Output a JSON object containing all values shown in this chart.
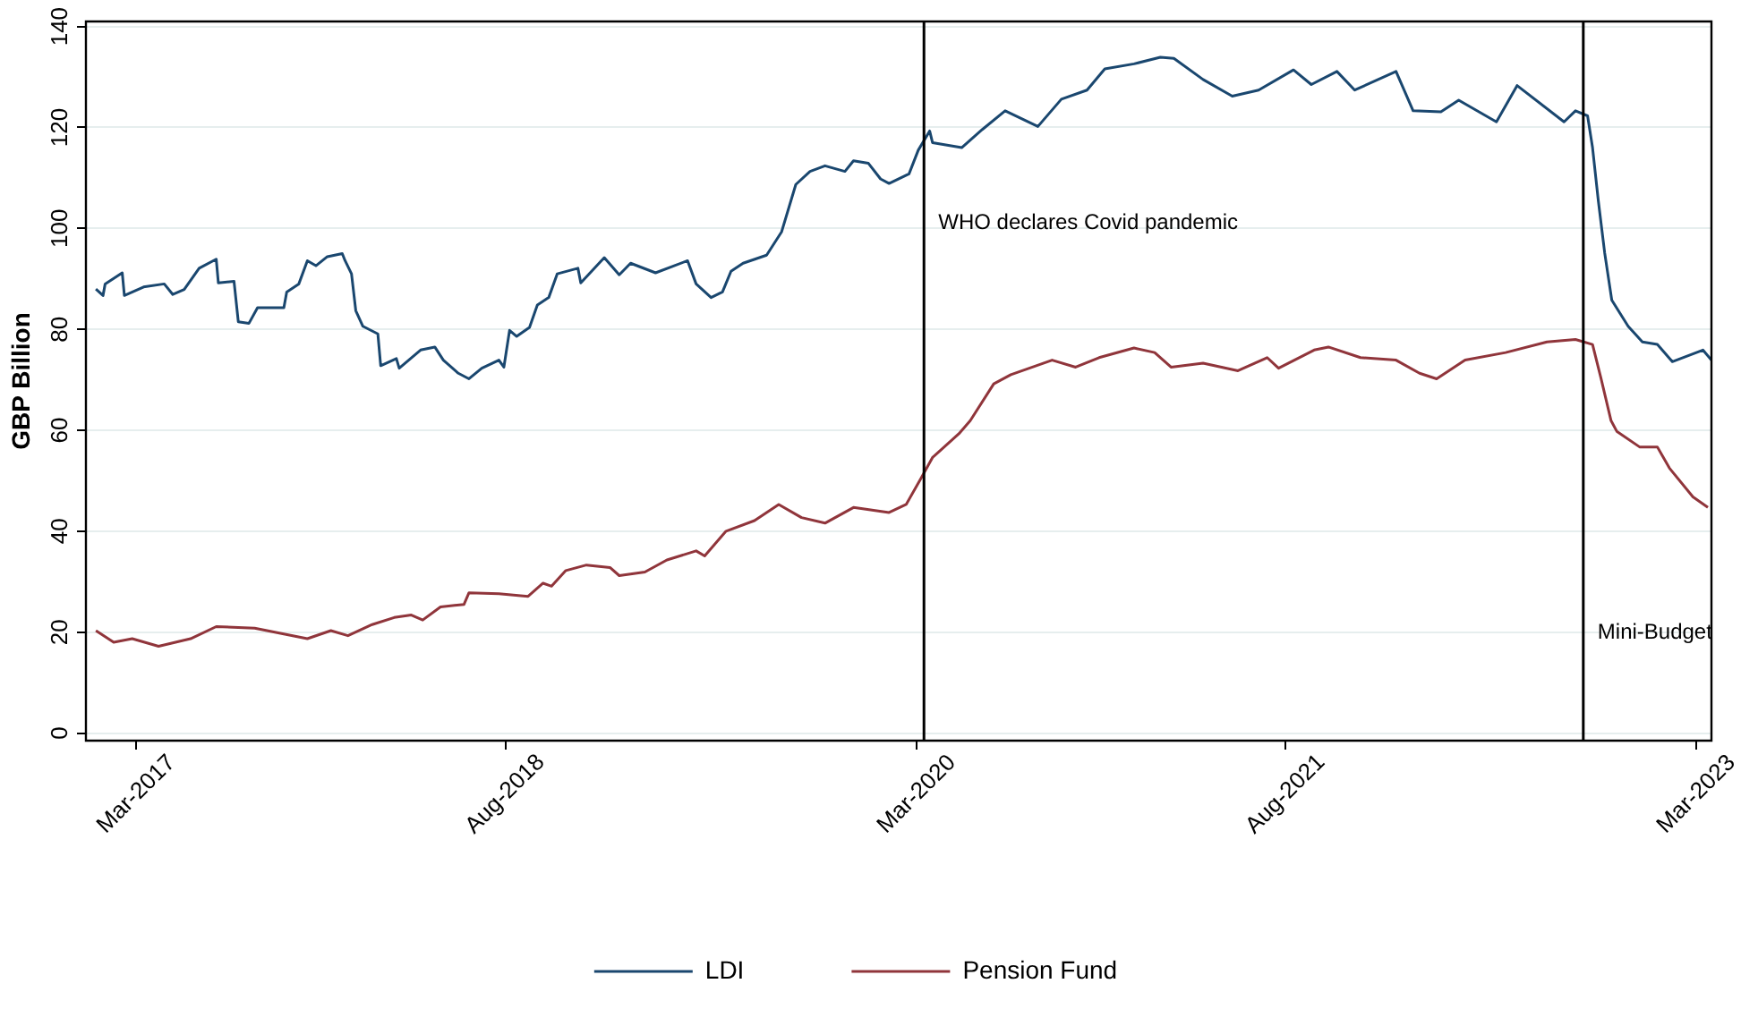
{
  "chart_data": {
    "type": "line",
    "ylabel": "GBP Billion",
    "xlim": [
      "2016-12-20",
      "2023-03-22"
    ],
    "ylim": [
      -1.5,
      141
    ],
    "yticks": [
      0,
      20,
      40,
      60,
      80,
      100,
      120,
      140
    ],
    "xticks": [
      {
        "value": "2017-03-01",
        "label": "Mar-2017"
      },
      {
        "value": "2018-08-01",
        "label": "Aug-2018"
      },
      {
        "value": "2020-03-01",
        "label": "Mar-2020"
      },
      {
        "value": "2021-08-01",
        "label": "Aug-2021"
      },
      {
        "value": "2023-03-01",
        "label": "Mar-2023"
      }
    ],
    "grid": "y",
    "legend": "bottom",
    "ref_lines": [
      {
        "axis": "x",
        "value": "2020-03-11",
        "label": "WHO declares Covid pandemic",
        "color": "#000000"
      },
      {
        "axis": "x",
        "value": "2022-09-23",
        "label": "Mini-Budget",
        "color": "#000000"
      }
    ],
    "series": [
      {
        "name": "LDI",
        "color": "#1a476f",
        "x": [
          "2017-01-03",
          "2017-01-13",
          "2017-01-16",
          "2017-02-09",
          "2017-02-12",
          "2017-03-11",
          "2017-04-09",
          "2017-04-21",
          "2017-05-07",
          "2017-05-28",
          "2017-06-21",
          "2017-06-24",
          "2017-07-16",
          "2017-07-22",
          "2017-08-06",
          "2017-08-18",
          "2017-09-24",
          "2017-09-28",
          "2017-10-15",
          "2017-10-27",
          "2017-11-08",
          "2017-11-24",
          "2017-12-15",
          "2017-12-19",
          "2017-12-28",
          "2018-01-03",
          "2018-01-13",
          "2018-02-03",
          "2018-02-07",
          "2018-03-01",
          "2018-03-05",
          "2018-04-04",
          "2018-04-24",
          "2018-05-06",
          "2018-05-27",
          "2018-06-11",
          "2018-06-29",
          "2018-07-23",
          "2018-07-30",
          "2018-08-07",
          "2018-08-17",
          "2018-09-04",
          "2018-09-15",
          "2018-10-01",
          "2018-10-13",
          "2018-11-11",
          "2018-11-15",
          "2018-12-18",
          "2019-01-08",
          "2019-01-24",
          "2019-02-28",
          "2019-04-14",
          "2019-04-26",
          "2019-05-17",
          "2019-06-02",
          "2019-06-14",
          "2019-07-01",
          "2019-08-03",
          "2019-08-24",
          "2019-09-13",
          "2019-10-03",
          "2019-10-24",
          "2019-11-21",
          "2019-12-03",
          "2019-12-24",
          "2020-01-10",
          "2020-01-22",
          "2020-02-19",
          "2020-03-03",
          "2020-03-19",
          "2020-03-23",
          "2020-05-03",
          "2020-06-01",
          "2020-07-03",
          "2020-08-18",
          "2020-09-20",
          "2020-10-26",
          "2020-11-20",
          "2020-12-31",
          "2021-02-06",
          "2021-02-25",
          "2021-04-07",
          "2021-05-18",
          "2021-06-24",
          "2021-08-12",
          "2021-09-06",
          "2021-10-12",
          "2021-11-06",
          "2022-01-03",
          "2022-01-27",
          "2022-03-07",
          "2022-04-01",
          "2022-05-24",
          "2022-06-22",
          "2022-08-27",
          "2022-09-12",
          "2022-09-29",
          "2022-10-06",
          "2022-10-14",
          "2022-10-23",
          "2022-11-02",
          "2022-11-25",
          "2022-12-15",
          "2023-01-05",
          "2023-01-26",
          "2023-03-10",
          "2023-03-22"
        ],
        "values": [
          88.0,
          86.7,
          89.0,
          91.2,
          86.7,
          88.4,
          89.0,
          86.9,
          87.9,
          92.1,
          93.9,
          89.2,
          89.5,
          81.5,
          81.2,
          84.3,
          84.3,
          87.4,
          89.0,
          93.6,
          92.6,
          94.4,
          95.0,
          93.6,
          91.0,
          83.7,
          80.6,
          79.1,
          72.8,
          74.2,
          72.3,
          75.9,
          76.5,
          73.9,
          71.3,
          70.2,
          72.3,
          73.9,
          72.5,
          79.8,
          78.6,
          80.4,
          84.8,
          86.3,
          91.0,
          92.1,
          89.2,
          94.2,
          90.8,
          93.1,
          91.2,
          93.6,
          89.0,
          86.3,
          87.4,
          91.5,
          93.1,
          94.7,
          99.3,
          108.7,
          111.3,
          112.4,
          111.3,
          113.4,
          112.9,
          109.8,
          108.9,
          110.8,
          115.5,
          119.3,
          117.0,
          116.0,
          119.6,
          123.3,
          120.2,
          125.6,
          127.4,
          131.6,
          132.6,
          133.9,
          133.7,
          129.5,
          126.2,
          127.4,
          131.4,
          128.5,
          131.1,
          127.4,
          131.1,
          123.3,
          123.1,
          125.4,
          121.1,
          128.3,
          121.1,
          123.3,
          122.3,
          116.0,
          105.6,
          95.2,
          85.8,
          80.6,
          77.5,
          77.0,
          73.6,
          75.9,
          73.9
        ]
      },
      {
        "name": "Pension Fund",
        "color": "#90353b",
        "x": [
          "2017-01-03",
          "2017-01-28",
          "2017-02-23",
          "2017-04-01",
          "2017-05-16",
          "2017-06-21",
          "2017-08-14",
          "2017-10-27",
          "2017-11-29",
          "2017-12-23",
          "2018-01-26",
          "2018-02-26",
          "2018-03-22",
          "2018-04-07",
          "2018-05-02",
          "2018-06-04",
          "2018-06-11",
          "2018-07-23",
          "2018-09-02",
          "2018-09-23",
          "2018-10-05",
          "2018-10-25",
          "2018-11-23",
          "2018-12-26",
          "2019-01-08",
          "2019-02-13",
          "2019-03-16",
          "2019-04-26",
          "2019-05-08",
          "2019-06-07",
          "2019-07-17",
          "2019-08-20",
          "2019-09-21",
          "2019-10-24",
          "2019-12-03",
          "2020-01-22",
          "2020-02-15",
          "2020-03-07",
          "2020-03-23",
          "2020-04-29",
          "2020-05-15",
          "2020-06-17",
          "2020-07-11",
          "2020-09-07",
          "2020-10-10",
          "2020-11-12",
          "2020-12-31",
          "2021-01-29",
          "2021-02-21",
          "2021-04-07",
          "2021-05-26",
          "2021-07-06",
          "2021-07-22",
          "2021-09-10",
          "2021-09-30",
          "2021-11-14",
          "2022-01-03",
          "2022-02-05",
          "2022-03-01",
          "2022-04-10",
          "2022-06-06",
          "2022-08-03",
          "2022-09-12",
          "2022-10-06",
          "2022-10-18",
          "2022-11-01",
          "2022-11-09",
          "2022-12-11",
          "2023-01-05",
          "2023-01-22",
          "2023-02-24",
          "2023-03-17"
        ],
        "values": [
          20.3,
          18.0,
          18.7,
          17.2,
          18.7,
          21.1,
          20.8,
          18.7,
          20.3,
          19.3,
          21.5,
          22.9,
          23.4,
          22.4,
          25.0,
          25.5,
          27.8,
          27.6,
          27.1,
          29.7,
          29.1,
          32.2,
          33.3,
          32.8,
          31.2,
          31.9,
          34.3,
          36.1,
          35.1,
          40.0,
          42.1,
          45.3,
          42.7,
          41.6,
          44.7,
          43.7,
          45.3,
          50.5,
          54.6,
          59.3,
          61.9,
          69.2,
          71.0,
          73.9,
          72.5,
          74.4,
          76.3,
          75.4,
          72.5,
          73.3,
          71.8,
          74.4,
          72.3,
          75.9,
          76.5,
          74.4,
          73.9,
          71.3,
          70.2,
          73.9,
          75.4,
          77.5,
          78.0,
          77.0,
          70.2,
          61.9,
          59.8,
          56.7,
          56.7,
          52.5,
          46.8,
          44.7
        ]
      }
    ]
  }
}
